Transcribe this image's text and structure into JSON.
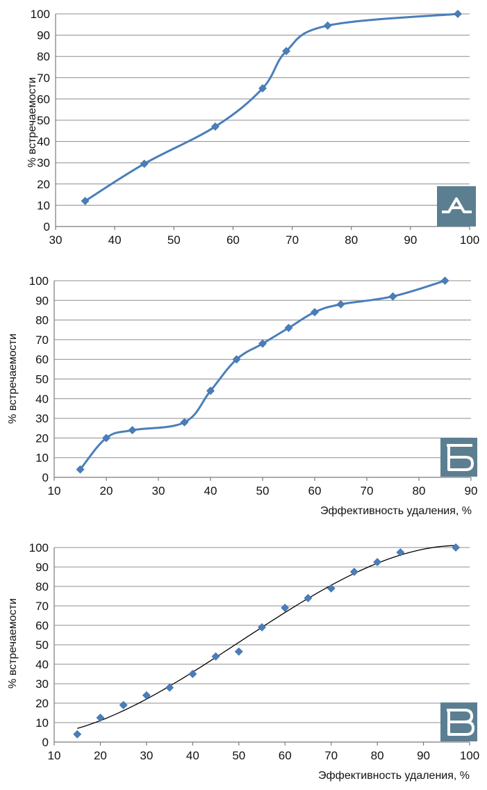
{
  "colors": {
    "line": "#4a7ebb",
    "marker": "#4a7ebb",
    "fit": "#000000",
    "badge": "#5b7f91",
    "grid": "#8c8c8c"
  },
  "chart_data": [
    {
      "type": "line",
      "panel": "А",
      "xlabel": "",
      "ylabel": "%  встречаемости",
      "xlim": [
        30,
        100
      ],
      "ylim": [
        0,
        100
      ],
      "xticks": [
        "30",
        "40",
        "50",
        "60",
        "70",
        "80",
        "90",
        "100"
      ],
      "yticks": [
        "0",
        "10",
        "20",
        "30",
        "40",
        "50",
        "60",
        "70",
        "80",
        "90",
        "100"
      ],
      "grid": true,
      "smooth": true,
      "series": [
        {
          "x": [
            35,
            45,
            57,
            65,
            69,
            76,
            98
          ],
          "y": [
            12,
            29.5,
            47,
            65,
            82.5,
            94.5,
            100
          ]
        }
      ]
    },
    {
      "type": "line",
      "panel": "Б",
      "xlabel": "Эффективность удаления, %",
      "ylabel": "% встречаемости",
      "xlim": [
        10,
        90
      ],
      "ylim": [
        0,
        100
      ],
      "xticks": [
        "10",
        "20",
        "30",
        "40",
        "50",
        "60",
        "70",
        "80",
        "90"
      ],
      "yticks": [
        "0",
        "10",
        "20",
        "30",
        "40",
        "50",
        "60",
        "70",
        "80",
        "90",
        "100"
      ],
      "grid": true,
      "smooth": true,
      "series": [
        {
          "x": [
            15,
            20,
            25,
            35,
            40,
            45,
            50,
            55,
            60,
            65,
            75,
            85
          ],
          "y": [
            4,
            20,
            24,
            28,
            44,
            60,
            68,
            76,
            84,
            88,
            92,
            100
          ]
        }
      ]
    },
    {
      "type": "scatter",
      "panel": "В",
      "xlabel": "Эффективность удаления, %",
      "ylabel": "% встречаемости",
      "xlim": [
        10,
        100
      ],
      "ylim": [
        0,
        100
      ],
      "xticks": [
        "10",
        "20",
        "30",
        "40",
        "50",
        "60",
        "70",
        "80",
        "90",
        "100"
      ],
      "yticks": [
        "0",
        "10",
        "20",
        "30",
        "40",
        "50",
        "60",
        "70",
        "80",
        "90",
        "100"
      ],
      "grid": true,
      "trendline": true,
      "series": [
        {
          "x": [
            15,
            20,
            25,
            30,
            35,
            40,
            45,
            50,
            55,
            60,
            65,
            70,
            75,
            80,
            85,
            97
          ],
          "y": [
            4,
            12.5,
            19,
            24,
            28,
            35,
            44,
            46.5,
            59,
            69,
            74,
            79,
            87.5,
            92.5,
            97.5,
            100
          ]
        }
      ]
    }
  ]
}
